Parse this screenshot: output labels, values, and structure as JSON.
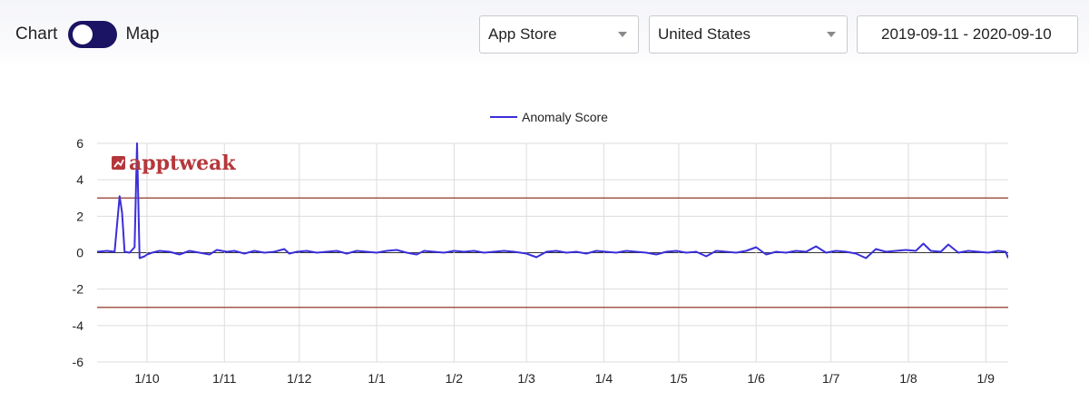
{
  "view_toggle": {
    "left_label": "Chart",
    "right_label": "Map",
    "state": "Chart"
  },
  "filters": {
    "store": "App Store",
    "country": "United States",
    "date_range": "2019-09-11 - 2020-09-10"
  },
  "watermark": {
    "text": "apptweak",
    "color": "#b5373b"
  },
  "chart_data": {
    "type": "line",
    "series": [
      {
        "name": "Anomaly Score",
        "color": "#3a2fd9",
        "x": [
          "2019-09-11",
          "2019-09-15",
          "2019-09-18",
          "2019-09-20",
          "2019-09-21",
          "2019-09-22",
          "2019-09-24",
          "2019-09-26",
          "2019-09-27",
          "2019-09-28",
          "2019-09-30",
          "2019-10-01",
          "2019-10-02",
          "2019-10-03",
          "2019-10-06",
          "2019-10-10",
          "2019-10-14",
          "2019-10-18",
          "2019-10-22",
          "2019-10-26",
          "2019-10-29",
          "2019-11-02",
          "2019-11-05",
          "2019-11-09",
          "2019-11-13",
          "2019-11-17",
          "2019-11-21",
          "2019-11-25",
          "2019-11-27",
          "2019-11-30",
          "2019-12-04",
          "2019-12-08",
          "2019-12-12",
          "2019-12-16",
          "2019-12-20",
          "2019-12-24",
          "2019-12-28",
          "2020-01-01",
          "2020-01-05",
          "2020-01-09",
          "2020-01-13",
          "2020-01-17",
          "2020-01-20",
          "2020-01-24",
          "2020-01-28",
          "2020-02-01",
          "2020-02-05",
          "2020-02-09",
          "2020-02-13",
          "2020-02-17",
          "2020-02-21",
          "2020-02-25",
          "2020-03-01",
          "2020-03-05",
          "2020-03-09",
          "2020-03-13",
          "2020-03-17",
          "2020-03-21",
          "2020-03-25",
          "2020-03-29",
          "2020-04-02",
          "2020-04-06",
          "2020-04-10",
          "2020-04-14",
          "2020-04-18",
          "2020-04-22",
          "2020-04-26",
          "2020-04-30",
          "2020-05-04",
          "2020-05-08",
          "2020-05-12",
          "2020-05-16",
          "2020-05-20",
          "2020-05-24",
          "2020-05-28",
          "2020-06-01",
          "2020-06-05",
          "2020-06-09",
          "2020-06-13",
          "2020-06-17",
          "2020-06-21",
          "2020-06-25",
          "2020-06-29",
          "2020-07-03",
          "2020-07-07",
          "2020-07-11",
          "2020-07-15",
          "2020-07-19",
          "2020-07-23",
          "2020-07-27",
          "2020-07-31",
          "2020-08-04",
          "2020-08-07",
          "2020-08-10",
          "2020-08-14",
          "2020-08-17",
          "2020-08-21",
          "2020-08-25",
          "2020-08-29",
          "2020-09-02",
          "2020-09-06",
          "2020-09-09",
          "2020-09-10"
        ],
        "y": [
          0.05,
          0.1,
          0.05,
          3.1,
          2.2,
          0.05,
          0.0,
          0.3,
          6.0,
          -0.3,
          -0.2,
          -0.1,
          -0.05,
          0.0,
          0.1,
          0.05,
          -0.1,
          0.1,
          0.0,
          -0.1,
          0.15,
          0.05,
          0.1,
          -0.05,
          0.1,
          0.0,
          0.05,
          0.2,
          -0.05,
          0.05,
          0.1,
          0.0,
          0.05,
          0.1,
          -0.05,
          0.1,
          0.05,
          0.0,
          0.1,
          0.15,
          0.0,
          -0.1,
          0.1,
          0.05,
          0.0,
          0.1,
          0.05,
          0.1,
          0.0,
          0.05,
          0.1,
          0.05,
          -0.05,
          -0.25,
          0.05,
          0.1,
          0.0,
          0.05,
          -0.05,
          0.1,
          0.05,
          0.0,
          0.1,
          0.05,
          0.0,
          -0.1,
          0.05,
          0.1,
          0.0,
          0.05,
          -0.2,
          0.1,
          0.05,
          0.0,
          0.1,
          0.3,
          -0.1,
          0.05,
          0.0,
          0.1,
          0.05,
          0.35,
          0.0,
          0.1,
          0.05,
          -0.05,
          -0.3,
          0.2,
          0.05,
          0.1,
          0.15,
          0.1,
          0.5,
          0.1,
          0.05,
          0.45,
          0.0,
          0.1,
          0.05,
          0.0,
          0.1,
          0.05,
          -0.3
        ]
      }
    ],
    "thresholds": [
      {
        "value": 3,
        "color": "#a0584b"
      },
      {
        "value": -3,
        "color": "#a0584b"
      }
    ],
    "x_domain": [
      "2019-09-11",
      "2020-09-10"
    ],
    "x_ticks": [
      {
        "date": "2019-10-01",
        "label": "1/10"
      },
      {
        "date": "2019-11-01",
        "label": "1/11"
      },
      {
        "date": "2019-12-01",
        "label": "1/12"
      },
      {
        "date": "2020-01-01",
        "label": "1/1"
      },
      {
        "date": "2020-02-01",
        "label": "1/2"
      },
      {
        "date": "2020-03-01",
        "label": "1/3"
      },
      {
        "date": "2020-04-01",
        "label": "1/4"
      },
      {
        "date": "2020-05-01",
        "label": "1/5"
      },
      {
        "date": "2020-06-01",
        "label": "1/6"
      },
      {
        "date": "2020-07-01",
        "label": "1/7"
      },
      {
        "date": "2020-08-01",
        "label": "1/8"
      },
      {
        "date": "2020-09-01",
        "label": "1/9"
      }
    ],
    "y_ticks": [
      6,
      4,
      2,
      0,
      -2,
      -4,
      -6
    ],
    "ylim": [
      -6,
      6
    ],
    "grid": true,
    "legend": "top-center",
    "title": "",
    "xlabel": "",
    "ylabel": ""
  }
}
